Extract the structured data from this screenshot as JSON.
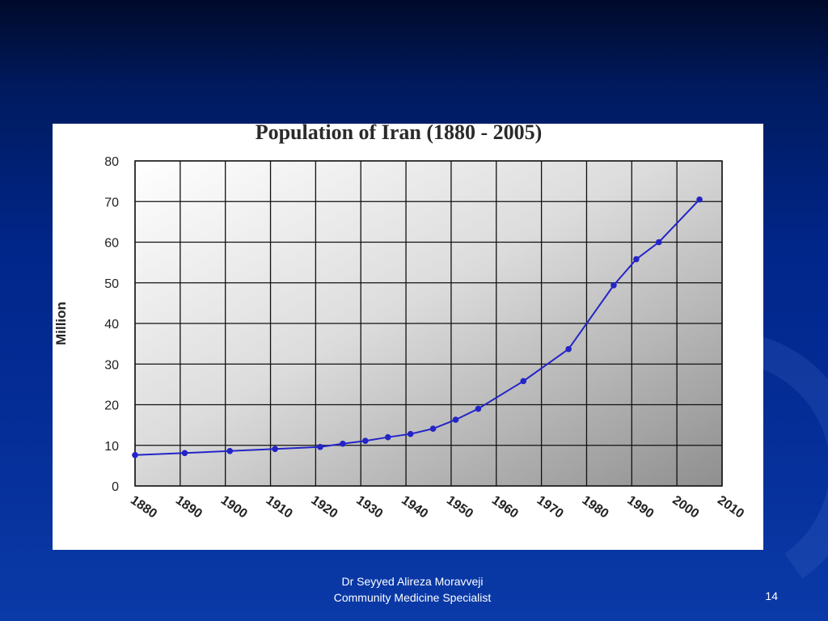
{
  "footer": {
    "author": "Dr Seyyed Alireza Moravveji",
    "role": "Community Medicine Specialist",
    "slide_number": "14"
  },
  "colors": {
    "series": "#2424c8",
    "slide_background": "#0a2a8e"
  },
  "chart_data": {
    "type": "line",
    "title": "Population of Iran (1880 - 2005)",
    "xlabel": "",
    "ylabel": "Million",
    "xlim": [
      1880,
      2010
    ],
    "ylim": [
      0,
      80
    ],
    "x_ticks": [
      1880,
      1890,
      1900,
      1910,
      1920,
      1930,
      1940,
      1950,
      1960,
      1970,
      1980,
      1990,
      2000,
      2010
    ],
    "y_ticks": [
      0,
      10,
      20,
      30,
      40,
      50,
      60,
      70,
      80
    ],
    "grid": true,
    "legend": "none",
    "series": [
      {
        "x": [
          1880,
          1891,
          1901,
          1911,
          1921,
          1926,
          1931,
          1936,
          1941,
          1946,
          1951,
          1956,
          1966,
          1976,
          1986,
          1991,
          1996,
          2005
        ],
        "values": [
          7.6,
          8.1,
          8.6,
          9.1,
          9.6,
          10.4,
          11.1,
          12.0,
          12.8,
          14.1,
          16.3,
          19.0,
          25.8,
          33.7,
          49.4,
          55.8,
          60.0,
          70.5
        ]
      }
    ]
  }
}
